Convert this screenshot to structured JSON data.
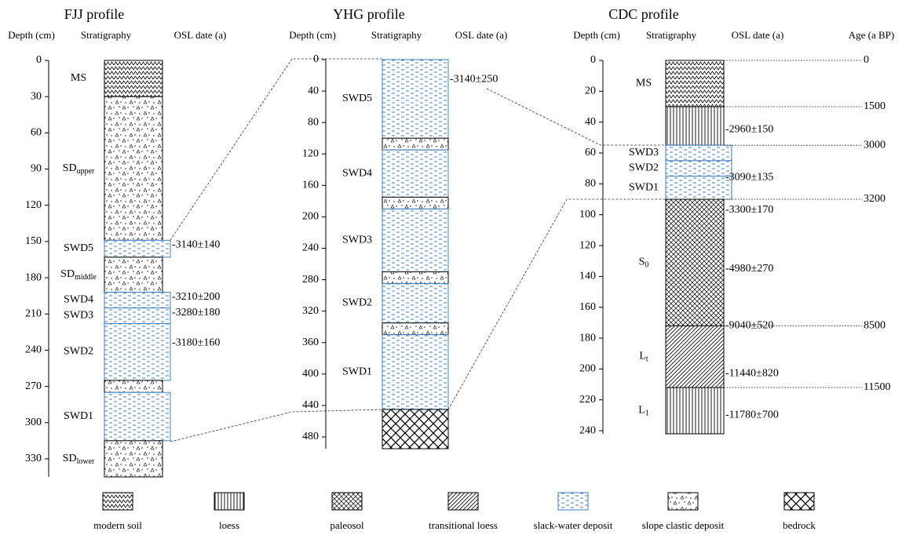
{
  "profiles": [
    {
      "title": "FJJ profile",
      "headers": [
        "Depth (cm)",
        "Stratigraphy",
        "OSL date (a)"
      ],
      "ylim": [
        0,
        345
      ],
      "ticks": [
        0,
        30,
        60,
        90,
        120,
        150,
        180,
        210,
        240,
        270,
        300,
        330
      ],
      "layers": [
        {
          "label": "MS",
          "top": 0,
          "bottom": 30,
          "pattern": "modern soil"
        },
        {
          "label": "SD",
          "sub": "upper",
          "top": 30,
          "bottom": 149,
          "pattern": "slope clastic deposit"
        },
        {
          "label": "SWD5",
          "top": 149,
          "bottom": 163,
          "pattern": "slack-water deposit",
          "wide": true
        },
        {
          "label": "SD",
          "sub": "middle",
          "top": 163,
          "bottom": 192,
          "pattern": "slope clastic deposit"
        },
        {
          "label": "SWD4",
          "top": 192,
          "bottom": 205,
          "pattern": "slack-water deposit",
          "wide": true
        },
        {
          "label": "SWD3",
          "top": 205,
          "bottom": 218,
          "pattern": "slack-water deposit",
          "wide": true
        },
        {
          "label": "SWD2",
          "top": 218,
          "bottom": 265,
          "pattern": "slack-water deposit",
          "wide": true
        },
        {
          "top": 265,
          "bottom": 275,
          "pattern": "slope clastic deposit"
        },
        {
          "label": "SWD1",
          "top": 275,
          "bottom": 315,
          "pattern": "slack-water deposit",
          "wide": true
        },
        {
          "label": "SD",
          "sub": "lower",
          "top": 315,
          "bottom": 345,
          "pattern": "slope clastic deposit"
        }
      ],
      "osl": [
        {
          "label": "-3140±140",
          "depth": 153
        },
        {
          "label": "-3210±200",
          "depth": 196
        },
        {
          "label": "-3280±180",
          "depth": 209
        },
        {
          "label": "-3180±160",
          "depth": 234
        }
      ]
    },
    {
      "title": "YHG profile",
      "headers": [
        "Depth (cm)",
        "Stratigraphy",
        "OSL date (a)"
      ],
      "ylim": [
        0,
        495
      ],
      "ticks": [
        0,
        40,
        80,
        120,
        160,
        200,
        240,
        280,
        320,
        360,
        400,
        440,
        480
      ],
      "layers": [
        {
          "label": "SWD5",
          "top": 0,
          "bottom": 100,
          "pattern": "slack-water deposit"
        },
        {
          "top": 100,
          "bottom": 115,
          "pattern": "slope clastic deposit"
        },
        {
          "label": "SWD4",
          "top": 115,
          "bottom": 175,
          "pattern": "slack-water deposit"
        },
        {
          "top": 175,
          "bottom": 190,
          "pattern": "slope clastic deposit"
        },
        {
          "label": "SWD3",
          "top": 190,
          "bottom": 270,
          "pattern": "slack-water deposit"
        },
        {
          "top": 270,
          "bottom": 285,
          "pattern": "slope clastic deposit"
        },
        {
          "label": "SWD2",
          "top": 285,
          "bottom": 335,
          "pattern": "slack-water deposit"
        },
        {
          "top": 335,
          "bottom": 350,
          "pattern": "slope clastic deposit"
        },
        {
          "label": "SWD1",
          "top": 350,
          "bottom": 445,
          "pattern": "slack-water deposit"
        },
        {
          "top": 445,
          "bottom": 495,
          "pattern": "bedrock"
        }
      ],
      "osl": [
        {
          "label": "-3140±250",
          "depth": 25
        }
      ]
    },
    {
      "title": "CDC profile",
      "headers": [
        "Depth (cm)",
        "Stratigraphy",
        "OSL date (a)",
        "Age (a BP)"
      ],
      "ylim": [
        0,
        242
      ],
      "ticks": [
        0,
        20,
        40,
        60,
        80,
        100,
        120,
        140,
        160,
        180,
        200,
        220,
        240
      ],
      "layers": [
        {
          "label": "MS",
          "top": 0,
          "bottom": 30,
          "pattern": "modern soil"
        },
        {
          "top": 30,
          "bottom": 55,
          "pattern": "loess"
        },
        {
          "label": "SWD3",
          "top": 55,
          "bottom": 65,
          "pattern": "slack-water deposit",
          "wide": true
        },
        {
          "label": "SWD2",
          "top": 65,
          "bottom": 75,
          "pattern": "slack-water deposit",
          "wide": true
        },
        {
          "label": "SWD1",
          "top": 75,
          "bottom": 90,
          "pattern": "slack-water deposit",
          "wide": true
        },
        {
          "label": "S",
          "sub": "0",
          "top": 90,
          "bottom": 172,
          "pattern": "paleosol"
        },
        {
          "label": "L",
          "sub": "t",
          "top": 172,
          "bottom": 212,
          "pattern": "transitional loess"
        },
        {
          "label": "L",
          "sub": "1",
          "top": 212,
          "bottom": 242,
          "pattern": "loess"
        }
      ],
      "osl": [
        {
          "label": "-2960±150",
          "depth": 45
        },
        {
          "label": "-3090±135",
          "depth": 76
        },
        {
          "label": "-3300±170",
          "depth": 97
        },
        {
          "label": "-4980±270",
          "depth": 135
        },
        {
          "label": "-9040±520",
          "depth": 172
        },
        {
          "label": "-11440±820",
          "depth": 203
        },
        {
          "label": "-11780±700",
          "depth": 230
        }
      ],
      "ages": [
        {
          "age": 0,
          "depth": 0
        },
        {
          "age": 1500,
          "depth": 30
        },
        {
          "age": 3000,
          "depth": 55
        },
        {
          "age": 3200,
          "depth": 90
        },
        {
          "age": 8500,
          "depth": 172
        },
        {
          "age": 11500,
          "depth": 212
        }
      ]
    }
  ],
  "legend": [
    "modern soil",
    "loess",
    "paleosol",
    "transitional loess",
    "slack-water deposit",
    "slope clastic deposit",
    "bedrock"
  ]
}
